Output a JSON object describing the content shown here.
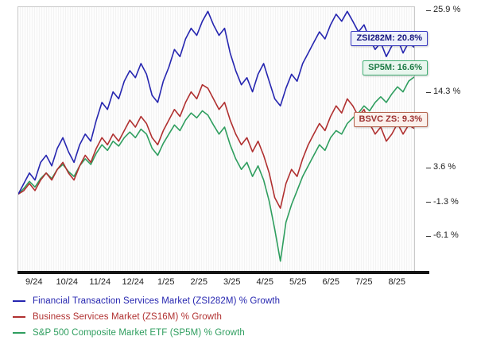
{
  "chart_data": {
    "type": "line",
    "title": "",
    "xlabel": "",
    "ylabel": "% Growth",
    "grid": false,
    "legend_position": "bottom-left",
    "ylim": [
      -11,
      26.5
    ],
    "x_tick_labels": [
      "9/24",
      "10/24",
      "11/24",
      "12/24",
      "1/25",
      "2/25",
      "3/25",
      "4/25",
      "5/25",
      "6/25",
      "7/25",
      "8/25"
    ],
    "y_ticks": [
      {
        "label": "25.9 %",
        "value": 25.9
      },
      {
        "label": "14.3 %",
        "value": 14.3
      },
      {
        "label": "3.6 %",
        "value": 3.6
      },
      {
        "label": "-1.3 %",
        "value": -1.3
      },
      {
        "label": "-6.1 %",
        "value": -6.1
      }
    ],
    "series": [
      {
        "name": "S&P 500 Composite Market ETF (SP5M) % Growth",
        "ticker": "SP5M",
        "color": "#2f9e5f",
        "end_value": 16.6,
        "values": [
          0,
          0.8,
          1.8,
          1.0,
          2.2,
          3.0,
          2.2,
          3.5,
          4.2,
          3.2,
          2.5,
          4.0,
          5.0,
          4.2,
          5.8,
          7.0,
          6.2,
          7.5,
          6.8,
          8.0,
          8.8,
          8.0,
          9.2,
          8.5,
          6.5,
          5.5,
          7.2,
          8.5,
          9.8,
          9.0,
          10.5,
          11.5,
          10.8,
          11.8,
          11.2,
          9.8,
          8.5,
          9.5,
          7.0,
          5.0,
          3.5,
          4.5,
          2.5,
          4.0,
          2.0,
          -1.0,
          -5.0,
          -9.5,
          -4.0,
          -1.5,
          0.5,
          2.5,
          4.0,
          5.5,
          7.0,
          6.2,
          8.0,
          9.0,
          8.5,
          10.0,
          10.8,
          11.5,
          12.5,
          11.8,
          13.0,
          13.8,
          13.0,
          14.2,
          15.2,
          14.5,
          16.0,
          16.6
        ]
      },
      {
        "name": "Business Services Market (ZS16M) % Growth",
        "ticker": "ZS16M",
        "color": "#b03030",
        "end_value": 9.3,
        "values": [
          0,
          0.5,
          1.5,
          0.5,
          2.0,
          3.0,
          2.0,
          3.5,
          4.5,
          3.0,
          2.0,
          4.0,
          5.5,
          4.5,
          6.5,
          8.0,
          7.0,
          8.5,
          7.5,
          9.0,
          10.5,
          9.5,
          11.0,
          10.0,
          8.0,
          7.0,
          9.0,
          10.5,
          12.0,
          11.0,
          13.0,
          14.5,
          13.5,
          15.5,
          15.0,
          13.5,
          12.0,
          13.0,
          10.5,
          8.5,
          7.0,
          8.0,
          6.0,
          7.5,
          5.5,
          3.0,
          -0.5,
          -2.0,
          1.5,
          3.5,
          2.5,
          5.0,
          7.0,
          8.5,
          10.0,
          9.0,
          11.0,
          12.5,
          11.5,
          13.5,
          12.5,
          11.0,
          12.0,
          10.0,
          8.5,
          9.5,
          7.5,
          8.5,
          10.0,
          8.5,
          9.8,
          9.3
        ]
      },
      {
        "name": "Financial Transaction Services Market (ZSI282M) % Growth",
        "ticker": "ZSI282M",
        "color": "#2626b0",
        "end_value": 20.8,
        "values": [
          0,
          1.5,
          3.0,
          2.0,
          4.5,
          5.5,
          4.0,
          6.5,
          8.0,
          6.0,
          4.5,
          7.0,
          8.5,
          7.5,
          10.5,
          13.0,
          12.0,
          14.5,
          13.5,
          16.0,
          17.5,
          16.5,
          18.5,
          17.0,
          14.0,
          13.0,
          16.0,
          18.0,
          20.5,
          19.5,
          22.0,
          23.5,
          22.5,
          24.5,
          25.9,
          24.0,
          22.5,
          23.5,
          20.0,
          17.5,
          15.5,
          16.5,
          14.5,
          17.0,
          18.5,
          16.0,
          13.5,
          12.5,
          15.0,
          17.0,
          16.0,
          18.5,
          20.0,
          21.5,
          23.0,
          22.0,
          24.0,
          25.5,
          24.5,
          25.9,
          24.5,
          23.0,
          24.0,
          22.0,
          20.5,
          21.5,
          19.5,
          21.0,
          22.0,
          20.0,
          21.5,
          20.8
        ]
      }
    ],
    "callouts": [
      {
        "text": "ZSI282M: 20.8%",
        "value": 20.8,
        "bg": "#eef1fb",
        "border": "#3a3ac0",
        "text_color": "#16167e"
      },
      {
        "text": "SP5M: 16.6%",
        "value": 16.6,
        "bg": "#e9f6ee",
        "border": "#3fae72",
        "text_color": "#1d7a45"
      },
      {
        "text": "BSVC ZS: 9.3%",
        "value": 9.3,
        "bg": "#fbf1ec",
        "border": "#b4654f",
        "text_color": "#9c2f2f"
      }
    ],
    "legend": [
      {
        "label": "Financial Transaction Services Market (ZSI282M) % Growth",
        "color": "#2626b0"
      },
      {
        "label": "Business Services Market (ZS16M) % Growth",
        "color": "#b03030"
      },
      {
        "label": "S&P 500 Composite Market ETF (SP5M) % Growth",
        "color": "#2f9e5f"
      }
    ]
  }
}
